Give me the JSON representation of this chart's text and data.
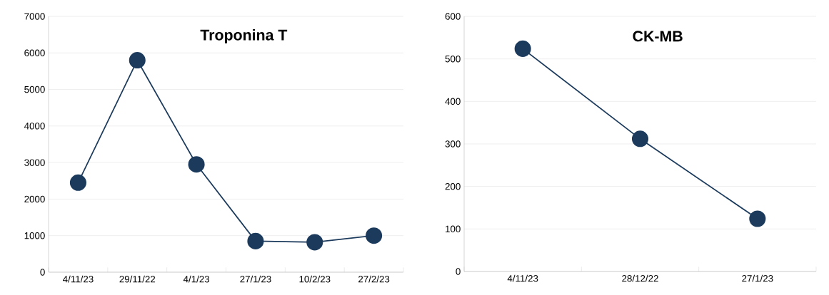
{
  "chart_data": [
    {
      "type": "line",
      "title": "Troponina T",
      "categories": [
        "4/11/23",
        "29/11/22",
        "4/1/23",
        "27/1/23",
        "10/2/23",
        "27/2/23"
      ],
      "series": [
        {
          "color": "#1b3a5c",
          "values": [
            2450,
            5800,
            2950,
            850,
            820,
            1000
          ]
        }
      ],
      "ylim": [
        0,
        7000
      ],
      "yticks": [
        0,
        1000,
        2000,
        3000,
        4000,
        5000,
        6000,
        7000
      ],
      "grid": "y",
      "marker": "circle",
      "line_style": "solid"
    },
    {
      "type": "line",
      "title": "CK-MB",
      "categories": [
        "4/11/23",
        "28/12/22",
        "27/1/23"
      ],
      "series": [
        {
          "color": "#1b3a5c",
          "values": [
            524,
            312,
            124
          ]
        }
      ],
      "ylim": [
        0,
        600
      ],
      "yticks": [
        0,
        100,
        200,
        300,
        400,
        500,
        600
      ],
      "grid": "y",
      "marker": "circle",
      "line_style": "solid"
    }
  ]
}
